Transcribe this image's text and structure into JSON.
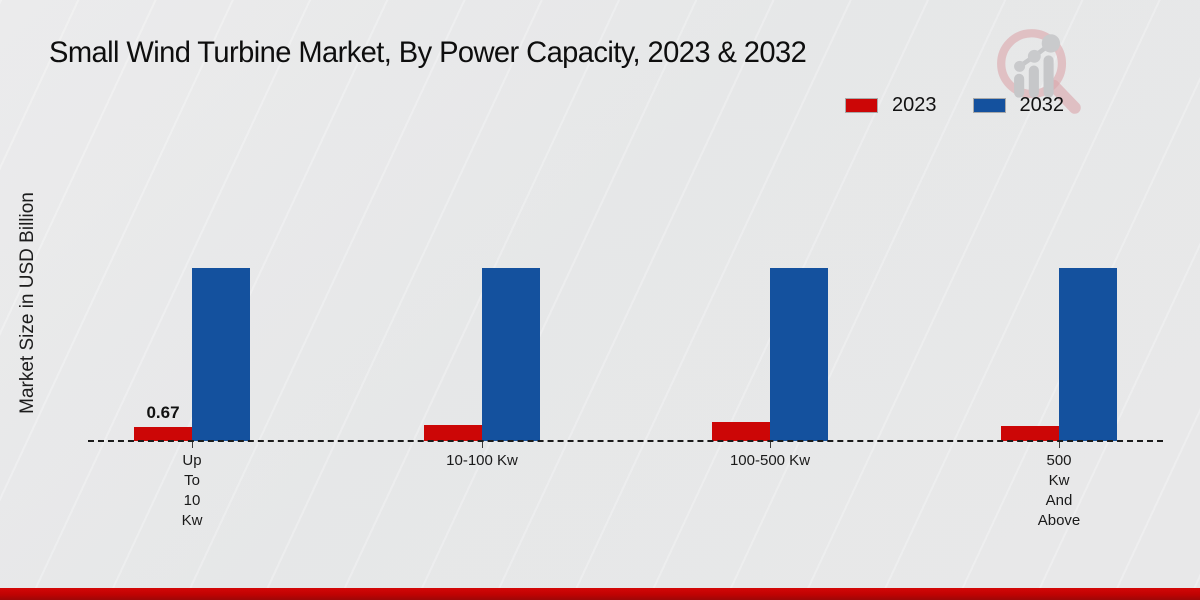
{
  "page": {
    "title": "Small Wind Turbine Market, By Power Capacity, 2023 & 2032",
    "background_color": "#e9eaeb",
    "footer_color": "#c00404"
  },
  "y_axis": {
    "label": "Market Size in USD Billion"
  },
  "legend": {
    "position": "top-right",
    "items": [
      {
        "label": "2023",
        "color": "#cc0606"
      },
      {
        "label": "2032",
        "color": "#14519e"
      }
    ]
  },
  "logo": {
    "icon": "magnifier-bar-chart-watermark-logo"
  },
  "chart_data": {
    "type": "bar",
    "title": "Small Wind Turbine Market, By Power Capacity, 2023 & 2032",
    "xlabel": "",
    "ylabel": "Market Size in USD Billion",
    "categories": [
      "Up To 10 Kw",
      "10-100 Kw",
      "100-500 Kw",
      "500 Kw And Above"
    ],
    "category_label_lines": [
      [
        "Up",
        "To",
        "10",
        "Kw"
      ],
      [
        "10-100 Kw"
      ],
      [
        "100-500 Kw"
      ],
      [
        "500",
        "Kw",
        "And",
        "Above"
      ]
    ],
    "series": [
      {
        "name": "2023",
        "color": "#cc0606",
        "values": [
          0.67,
          0.8,
          0.9,
          0.75
        ],
        "data_labels": [
          "0.67",
          null,
          null,
          null
        ]
      },
      {
        "name": "2032",
        "color": "#14519e",
        "values": [
          8.4,
          8.4,
          8.4,
          8.4
        ],
        "data_labels": [
          null,
          null,
          null,
          null
        ]
      }
    ],
    "ylim": [
      0,
      10
    ],
    "y_ticks_shown": false,
    "gridlines": false,
    "baseline_style": "dashed",
    "legend_position": "top-right"
  }
}
